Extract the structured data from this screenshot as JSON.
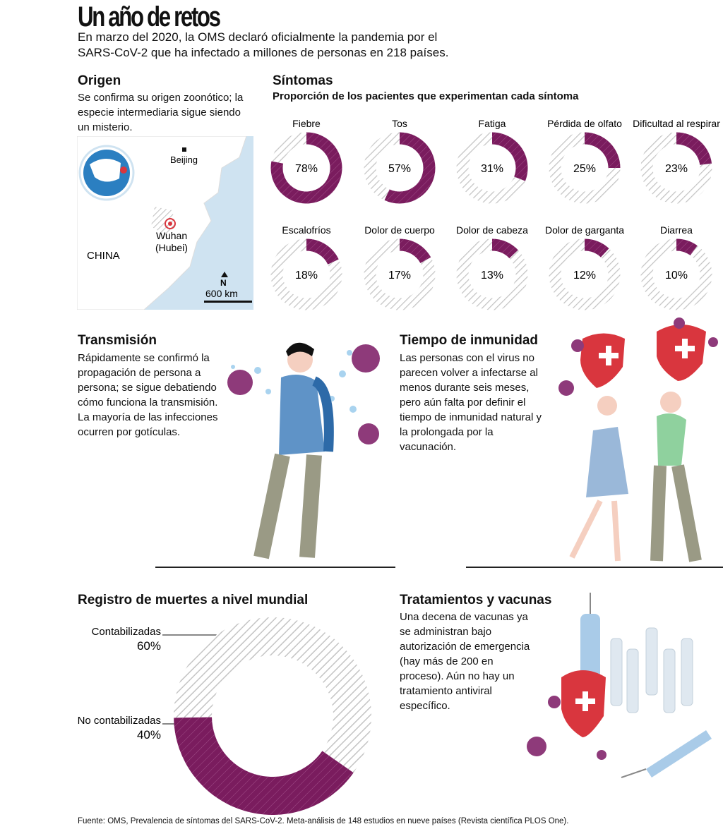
{
  "header": {
    "title": "Un año de retos",
    "subtitle": "En marzo del 2020, la OMS declaró oficialmente la pandemia por el SARS-CoV-2 que ha infectado a millones de personas en 218 países."
  },
  "origen": {
    "title": "Origen",
    "text": "Se confirma su origen zoonótico; la especie intermediaria sigue siendo un misterio.",
    "map": {
      "beijing": "Beijing",
      "wuhan": "Wuhan",
      "hubei": "(Hubei)",
      "china": "CHINA",
      "north": "N",
      "scale": "600 km"
    }
  },
  "sintomas": {
    "title": "Síntomas",
    "subtitle": "Proporción de los pacientes que experimentan cada síntoma"
  },
  "transmision": {
    "title": "Transmisión",
    "text": "Rápidamente se confirmó la propagación de persona a persona; se sigue debatiendo cómo funciona la transmisión. La mayoría de las infecciones ocurren por gotículas."
  },
  "inmunidad": {
    "title": "Tiempo de inmunidad",
    "text": "Las personas con el virus no parecen volver a infectarse al menos durante seis meses, pero aún falta por definir el tiempo de inmunidad natural y la prolongada por la vacunación."
  },
  "muertes": {
    "title": "Registro de muertes a nivel mundial"
  },
  "tratamientos": {
    "title": "Tratamientos y vacunas",
    "text": "Una decena de vacunas ya se administran bajo autorización de emergencia (hay más de 200 en proceso). Aún no hay un tratamiento antiviral específico."
  },
  "footer": "Fuente: OMS, Prevalencia de síntomas del SARS-CoV-2. Meta-análisis de 148 estudios en nueve países (Revista científica PLOS One).",
  "colors": {
    "accent": "#7a1c5e",
    "hatch": "#c4c4c4",
    "sea": "#cfe3f1",
    "red": "#d9363e"
  },
  "chart_data": [
    {
      "type": "pie",
      "title": "Síntomas",
      "subtitle": "Proporción de los pacientes que experimentan cada síntoma",
      "unit": "%",
      "categories": [
        "Fiebre",
        "Tos",
        "Fatiga",
        "Pérdida de olfato",
        "Dificultad al respirar",
        "Escalofríos",
        "Dolor de cuerpo",
        "Dolor de cabeza",
        "Dolor de garganta",
        "Diarrea"
      ],
      "values": [
        78,
        57,
        31,
        25,
        23,
        18,
        17,
        13,
        12,
        10
      ],
      "labels": [
        "78%",
        "57%",
        "31%",
        "25%",
        "23%",
        "18%",
        "17%",
        "13%",
        "12%",
        "10%"
      ]
    },
    {
      "type": "pie",
      "title": "Registro de muertes a nivel mundial",
      "categories": [
        "Contabilizadas",
        "No contabilizadas"
      ],
      "values": [
        60,
        40
      ],
      "labels": [
        "60%",
        "40%"
      ]
    }
  ]
}
